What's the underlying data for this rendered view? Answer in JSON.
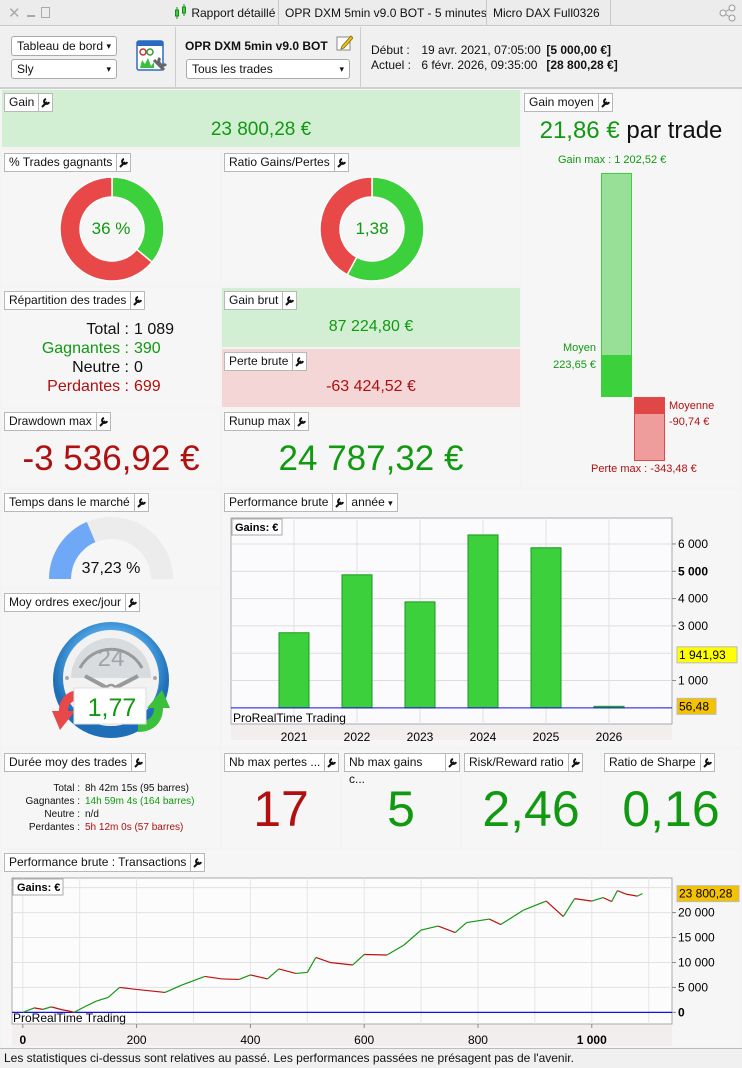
{
  "titlebar": {
    "tabs": [
      "Rapport détaillé",
      "OPR DXM 5min v9.0 BOT - 5 minutes",
      "Micro DAX Full0326"
    ]
  },
  "header": {
    "view_select": "Tableau de bord",
    "user_select": "Sly",
    "strategy_name": "OPR DXM 5min v9.0 BOT",
    "trades_filter": "Tous les trades",
    "start_label": "Début :",
    "start_date": "19 avr. 2021, 07:05:00",
    "start_capital": "[5 000,00 €]",
    "current_label": "Actuel :",
    "current_date": "6 févr. 2026, 09:35:00",
    "current_capital": "[28 800,28 €]"
  },
  "gain": {
    "title": "Gain",
    "value": "23 800,28 €"
  },
  "gain_moyen": {
    "title": "Gain moyen",
    "value": "21,86 €",
    "suffix": "par trade",
    "gain_max_label": "Gain max : 1 202,52 €",
    "moyen_label": "Moyen",
    "moyen_value": "223,65 €",
    "moyenne_label": "Moyenne",
    "moyenne_value": "-90,74 €",
    "perte_max_label": "Perte max : -343,48 €",
    "gain_max": 1202.52,
    "gain_avg": 223.65,
    "loss_avg": 90.74,
    "loss_max": 343.48
  },
  "pct_gagnants": {
    "title": "% Trades gagnants",
    "value": "36 %",
    "fraction": 0.36
  },
  "ratio": {
    "title": "Ratio Gains/Pertes",
    "value": "1,38",
    "fraction": 0.579
  },
  "repartition": {
    "title": "Répartition des trades",
    "rows": [
      {
        "label": "Total :",
        "value": "1 089"
      },
      {
        "label": "Gagnantes :",
        "value": "390"
      },
      {
        "label": "Neutre :",
        "value": "0"
      },
      {
        "label": "Perdantes :",
        "value": "699"
      }
    ]
  },
  "gain_brut": {
    "title": "Gain brut",
    "value": "87 224,80 €"
  },
  "perte_brute": {
    "title": "Perte brute",
    "value": "-63 424,52 €"
  },
  "drawdown": {
    "title": "Drawdown max",
    "value": "-3 536,92 €"
  },
  "runup": {
    "title": "Runup max",
    "value": "24 787,32 €"
  },
  "temps_marche": {
    "title": "Temps dans le marché",
    "value": "37,23 %",
    "fraction": 0.3723
  },
  "ordres": {
    "title": "Moy ordres exec/jour",
    "value": "1,77",
    "clock_label": "24"
  },
  "perf_annee": {
    "title": "Performance brute",
    "period_select": "année"
  },
  "duree": {
    "title": "Durée moy des trades",
    "rows": [
      {
        "label": "Total :",
        "value": "8h 42m 15s (95 barres)"
      },
      {
        "label": "Gagnantes :",
        "value": "14h 59m 4s (164 barres)"
      },
      {
        "label": "Neutre :",
        "value": "n/d"
      },
      {
        "label": "Perdantes :",
        "value": "5h 12m 0s (57 barres)"
      }
    ]
  },
  "nb_pertes": {
    "title": "Nb max pertes ...",
    "value": "17"
  },
  "nb_gains": {
    "title": "Nb max gains c...",
    "value": "5"
  },
  "risk_reward": {
    "title": "Risk/Reward ratio",
    "value": "2,46"
  },
  "sharpe": {
    "title": "Ratio de Sharpe",
    "value": "0,16"
  },
  "perf_transactions": {
    "title": "Performance brute : Transactions"
  },
  "colors": {
    "green": "#3cd03c",
    "red": "#e84848",
    "bar_border": "#1a9a1a",
    "line_up": "#119911",
    "line_down": "#c01010",
    "zero_line": "#1010e0",
    "yellow_tag": "#ffff00",
    "orange_tag": "#f5c200"
  },
  "chart_data": [
    {
      "type": "bar",
      "legend_label": "Gains: €",
      "watermark": "ProRealTime Trading",
      "categories": [
        "2021",
        "2022",
        "2023",
        "2024",
        "2025",
        "2026"
      ],
      "values": [
        2750,
        4870,
        3880,
        6330,
        5860,
        56.48
      ],
      "ylim": [
        -590,
        6950
      ],
      "yticks": [
        "1 000",
        "3 000",
        "4 000",
        "5 000",
        "6 000"
      ],
      "ytick_values": [
        1000,
        3000,
        4000,
        5000,
        6000
      ],
      "markers": [
        {
          "label": "1 941,93",
          "value": 1941.93,
          "color": "#ffff00"
        },
        {
          "label": "56,48",
          "value": 56.48,
          "color": "#f5c200"
        }
      ],
      "grid": true
    },
    {
      "type": "line",
      "legend_label": "Gains: €",
      "watermark": "ProRealTime Trading",
      "x": [
        0,
        20,
        35,
        50,
        70,
        80,
        90,
        110,
        130,
        150,
        170,
        200,
        250,
        280,
        320,
        350,
        380,
        400,
        430,
        450,
        480,
        500,
        515,
        540,
        580,
        600,
        640,
        670,
        700,
        730,
        760,
        780,
        820,
        840,
        880,
        920,
        950,
        970,
        1000,
        1020,
        1035,
        1045,
        1060,
        1080,
        1089
      ],
      "y": [
        0,
        900,
        600,
        1100,
        500,
        300,
        0,
        1200,
        2300,
        3000,
        5000,
        4600,
        4000,
        5500,
        7200,
        6700,
        6600,
        7500,
        6700,
        8700,
        7800,
        8000,
        11000,
        10000,
        9500,
        11600,
        11500,
        13500,
        16500,
        17300,
        16000,
        18000,
        18700,
        17600,
        20500,
        22300,
        19200,
        22800,
        22300,
        23000,
        22200,
        24400,
        23700,
        23300,
        23800
      ],
      "xlim": [
        -19,
        1141
      ],
      "ylim": [
        -2330,
        26930
      ],
      "xticks": [
        "0",
        "200",
        "400",
        "600",
        "800",
        "1 000"
      ],
      "xtick_values": [
        0,
        200,
        400,
        600,
        800,
        1000
      ],
      "yticks": [
        "0",
        "5 000",
        "10 000",
        "15 000",
        "20 000"
      ],
      "ytick_values": [
        0,
        5000,
        10000,
        15000,
        20000
      ],
      "markers": [
        {
          "label": "23 800,28",
          "value": 23800.28,
          "color": "#f5c200"
        }
      ],
      "grid": true
    }
  ],
  "footer": {
    "disclaimer": "Les statistiques ci-dessus sont relatives au passé. Les performances passées ne présagent pas de l'avenir."
  }
}
